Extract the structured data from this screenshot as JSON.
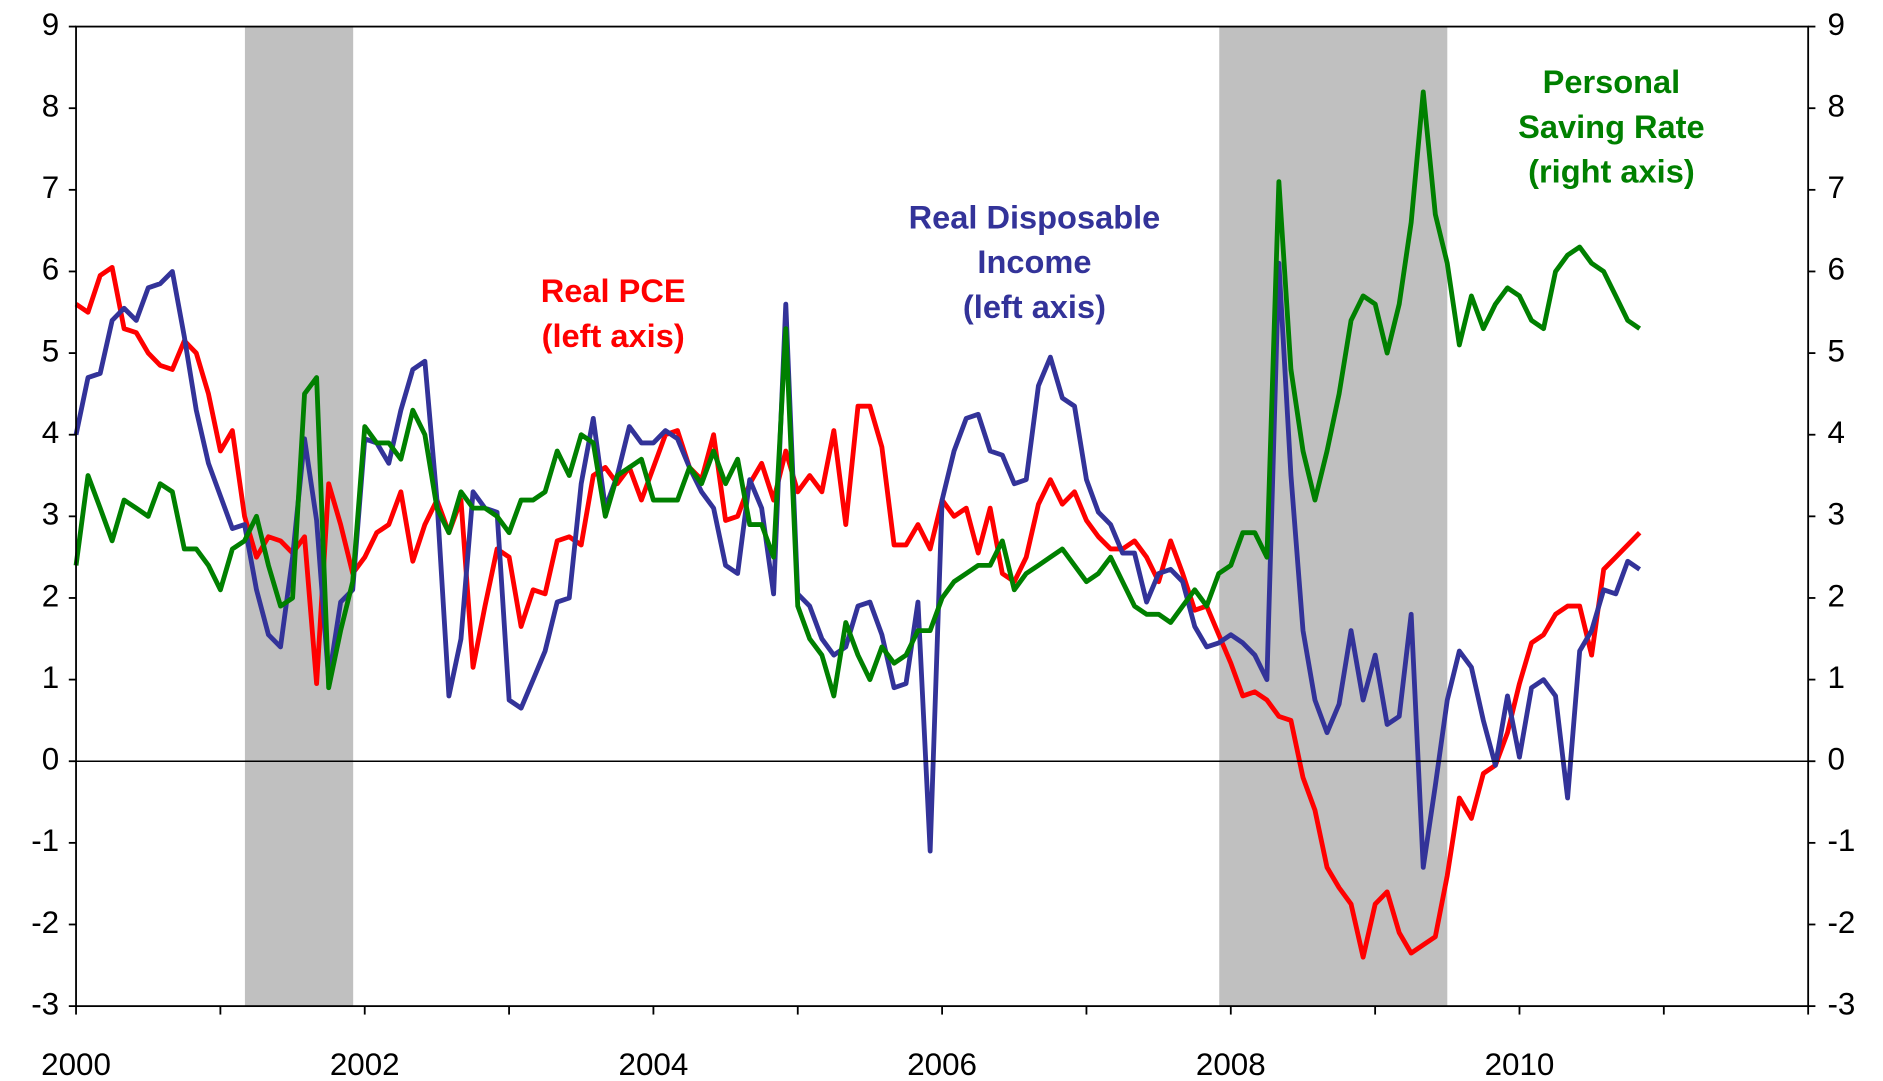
{
  "chart_data": {
    "type": "line",
    "x": [
      2000,
      2000.083,
      2000.167,
      2000.25,
      2000.333,
      2000.417,
      2000.5,
      2000.583,
      2000.667,
      2000.75,
      2000.833,
      2000.917,
      2001,
      2001.083,
      2001.167,
      2001.25,
      2001.333,
      2001.417,
      2001.5,
      2001.583,
      2001.667,
      2001.75,
      2001.833,
      2001.917,
      2002,
      2002.083,
      2002.167,
      2002.25,
      2002.333,
      2002.417,
      2002.5,
      2002.583,
      2002.667,
      2002.75,
      2002.833,
      2002.917,
      2003,
      2003.083,
      2003.167,
      2003.25,
      2003.333,
      2003.417,
      2003.5,
      2003.583,
      2003.667,
      2003.75,
      2003.833,
      2003.917,
      2004,
      2004.083,
      2004.167,
      2004.25,
      2004.333,
      2004.417,
      2004.5,
      2004.583,
      2004.667,
      2004.75,
      2004.833,
      2004.917,
      2005,
      2005.083,
      2005.167,
      2005.25,
      2005.333,
      2005.417,
      2005.5,
      2005.583,
      2005.667,
      2005.75,
      2005.833,
      2005.917,
      2006,
      2006.083,
      2006.167,
      2006.25,
      2006.333,
      2006.417,
      2006.5,
      2006.583,
      2006.667,
      2006.75,
      2006.833,
      2006.917,
      2007,
      2007.083,
      2007.167,
      2007.25,
      2007.333,
      2007.417,
      2007.5,
      2007.583,
      2007.667,
      2007.75,
      2007.833,
      2007.917,
      2008,
      2008.083,
      2008.167,
      2008.25,
      2008.333,
      2008.417,
      2008.5,
      2008.583,
      2008.667,
      2008.75,
      2008.833,
      2008.917,
      2009,
      2009.083,
      2009.167,
      2009.25,
      2009.333,
      2009.417,
      2009.5,
      2009.583,
      2009.667,
      2009.75,
      2009.833,
      2009.917,
      2010,
      2010.083,
      2010.167,
      2010.25,
      2010.333,
      2010.417,
      2010.5,
      2010.583,
      2010.667,
      2010.75,
      2010.833
    ],
    "series": [
      {
        "name": "Real PCE",
        "color": "#ff0000",
        "values": [
          5.6,
          5.5,
          5.95,
          6.05,
          5.3,
          5.25,
          5.0,
          4.85,
          4.8,
          5.15,
          5.0,
          4.5,
          3.8,
          4.05,
          3.0,
          2.5,
          2.75,
          2.7,
          2.55,
          2.75,
          0.95,
          3.4,
          2.9,
          2.3,
          2.5,
          2.8,
          2.9,
          3.3,
          2.45,
          2.9,
          3.2,
          2.8,
          3.2,
          1.15,
          1.9,
          2.6,
          2.5,
          1.65,
          2.1,
          2.05,
          2.7,
          2.75,
          2.65,
          3.5,
          3.6,
          3.4,
          3.6,
          3.2,
          3.6,
          4.0,
          4.05,
          3.6,
          3.45,
          4.0,
          2.95,
          3.0,
          3.4,
          3.65,
          3.2,
          3.8,
          3.3,
          3.5,
          3.3,
          4.05,
          2.9,
          4.35,
          4.35,
          3.85,
          2.65,
          2.65,
          2.9,
          2.6,
          3.2,
          3.0,
          3.1,
          2.55,
          3.1,
          2.3,
          2.2,
          2.5,
          3.15,
          3.45,
          3.15,
          3.3,
          2.95,
          2.75,
          2.6,
          2.6,
          2.7,
          2.5,
          2.2,
          2.7,
          2.3,
          1.85,
          1.9,
          1.55,
          1.2,
          0.8,
          0.85,
          0.75,
          0.55,
          0.5,
          -0.2,
          -0.6,
          -1.3,
          -1.55,
          -1.75,
          -2.4,
          -1.75,
          -1.6,
          -2.1,
          -2.35,
          -2.25,
          -2.15,
          -1.4,
          -0.45,
          -0.7,
          -0.15,
          -0.05,
          0.35,
          0.95,
          1.45,
          1.55,
          1.8,
          1.9,
          1.9,
          1.3,
          2.35,
          2.5,
          2.65,
          2.8
        ]
      },
      {
        "name": "Real Disposable Income",
        "color": "#333399",
        "values": [
          4.0,
          4.7,
          4.75,
          5.4,
          5.55,
          5.4,
          5.8,
          5.85,
          6.0,
          5.2,
          4.3,
          3.65,
          3.25,
          2.85,
          2.9,
          2.1,
          1.55,
          1.4,
          2.5,
          3.95,
          2.95,
          1.0,
          1.95,
          2.1,
          3.95,
          3.9,
          3.65,
          4.3,
          4.8,
          4.9,
          3.2,
          0.8,
          1.5,
          3.3,
          3.1,
          3.05,
          0.75,
          0.65,
          1.0,
          1.35,
          1.95,
          2.0,
          3.4,
          4.2,
          3.1,
          3.5,
          4.1,
          3.9,
          3.9,
          4.05,
          3.95,
          3.6,
          3.3,
          3.1,
          2.4,
          2.3,
          3.45,
          3.1,
          2.05,
          5.6,
          2.05,
          1.9,
          1.5,
          1.3,
          1.4,
          1.9,
          1.95,
          1.55,
          0.9,
          0.95,
          1.95,
          -1.1,
          3.2,
          3.8,
          4.2,
          4.25,
          3.8,
          3.75,
          3.4,
          3.45,
          4.6,
          4.95,
          4.45,
          4.35,
          3.45,
          3.05,
          2.9,
          2.55,
          2.55,
          1.95,
          2.3,
          2.35,
          2.2,
          1.65,
          1.4,
          1.45,
          1.55,
          1.45,
          1.3,
          1.0,
          6.1,
          3.5,
          1.6,
          0.75,
          0.35,
          0.7,
          1.6,
          0.75,
          1.3,
          0.45,
          0.55,
          1.8,
          -1.3,
          -0.3,
          0.75,
          1.35,
          1.15,
          0.5,
          -0.05,
          0.8,
          0.05,
          0.9,
          1.0,
          0.8,
          -0.45,
          1.35,
          1.6,
          2.1,
          2.05,
          2.45,
          2.35
        ]
      },
      {
        "name": "Personal Saving Rate",
        "color": "#008000",
        "axis": "y2",
        "values": [
          2.4,
          3.5,
          3.1,
          2.7,
          3.2,
          3.1,
          3.0,
          3.4,
          3.3,
          2.6,
          2.6,
          2.4,
          2.1,
          2.6,
          2.7,
          3.0,
          2.4,
          1.9,
          2.0,
          4.5,
          4.7,
          0.9,
          1.6,
          2.2,
          4.1,
          3.9,
          3.9,
          3.7,
          4.3,
          4.0,
          3.1,
          2.8,
          3.3,
          3.1,
          3.1,
          3.0,
          2.8,
          3.2,
          3.2,
          3.3,
          3.8,
          3.5,
          4.0,
          3.9,
          3.0,
          3.5,
          3.6,
          3.7,
          3.2,
          3.2,
          3.2,
          3.6,
          3.4,
          3.8,
          3.4,
          3.7,
          2.9,
          2.9,
          2.5,
          5.3,
          1.9,
          1.5,
          1.3,
          0.8,
          1.7,
          1.3,
          1.0,
          1.4,
          1.2,
          1.3,
          1.6,
          1.6,
          2.0,
          2.2,
          2.3,
          2.4,
          2.4,
          2.7,
          2.1,
          2.3,
          2.4,
          2.5,
          2.6,
          2.4,
          2.2,
          2.3,
          2.5,
          2.2,
          1.9,
          1.8,
          1.8,
          1.7,
          1.9,
          2.1,
          1.9,
          2.3,
          2.4,
          2.8,
          2.8,
          2.5,
          7.1,
          4.8,
          3.8,
          3.2,
          3.8,
          4.5,
          5.4,
          5.7,
          5.6,
          5.0,
          5.6,
          6.6,
          8.2,
          6.7,
          6.1,
          5.1,
          5.7,
          5.3,
          5.6,
          5.8,
          5.7,
          5.4,
          5.3,
          6.0,
          6.2,
          6.3,
          6.1,
          6.0,
          5.7,
          5.4,
          5.3
        ]
      }
    ],
    "annotations": [
      {
        "lines": [
          "Real PCE",
          "(left axis)"
        ],
        "color": "#ff0000"
      },
      {
        "lines": [
          "Real Disposable",
          "Income",
          "(left axis)"
        ],
        "color": "#333399"
      },
      {
        "lines": [
          "Personal",
          "Saving Rate",
          "(right axis)"
        ],
        "color": "#008000"
      }
    ],
    "shaded_periods": [
      [
        2001.17,
        2001.92
      ],
      [
        2007.92,
        2009.5
      ]
    ],
    "shade_color": "#c0c0c0",
    "xlim": [
      2000,
      2012
    ],
    "xticks": [
      2000,
      2002,
      2004,
      2006,
      2008,
      2010
    ],
    "xminor_ticks": [
      2001,
      2003,
      2005,
      2007,
      2009,
      2011,
      2012
    ],
    "ylim": [
      -3,
      9
    ],
    "yticks": [
      -3,
      -2,
      -1,
      0,
      1,
      2,
      3,
      4,
      5,
      6,
      7,
      8,
      9
    ],
    "y2lim": [
      -3,
      9
    ],
    "y2ticks": [
      -3,
      -2,
      -1,
      0,
      1,
      2,
      3,
      4,
      5,
      6,
      7,
      8,
      9
    ],
    "zero_line": true
  }
}
